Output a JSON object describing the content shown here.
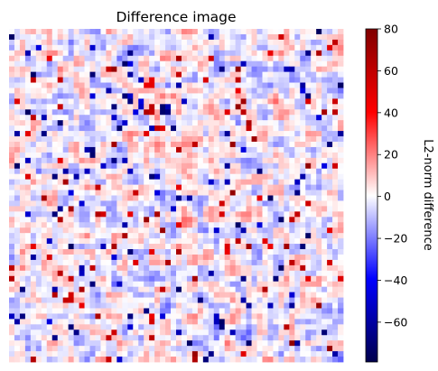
{
  "chart_data": {
    "type": "heatmap",
    "title": "Difference image",
    "colorbar": {
      "label": "L2-norm difference",
      "range": [
        -79,
        80
      ],
      "ticks": [
        80,
        60,
        40,
        20,
        0,
        -20,
        -40,
        -60
      ],
      "tick_labels": [
        "80",
        "60",
        "40",
        "20",
        "0",
        "−20",
        "−40",
        "−60"
      ],
      "colormap": "seismic",
      "colors": [
        "#00004c",
        "#0000ff",
        "#ffffff",
        "#ff0000",
        "#800000"
      ]
    },
    "axes_visible": false,
    "image_description_seed": 7
  }
}
